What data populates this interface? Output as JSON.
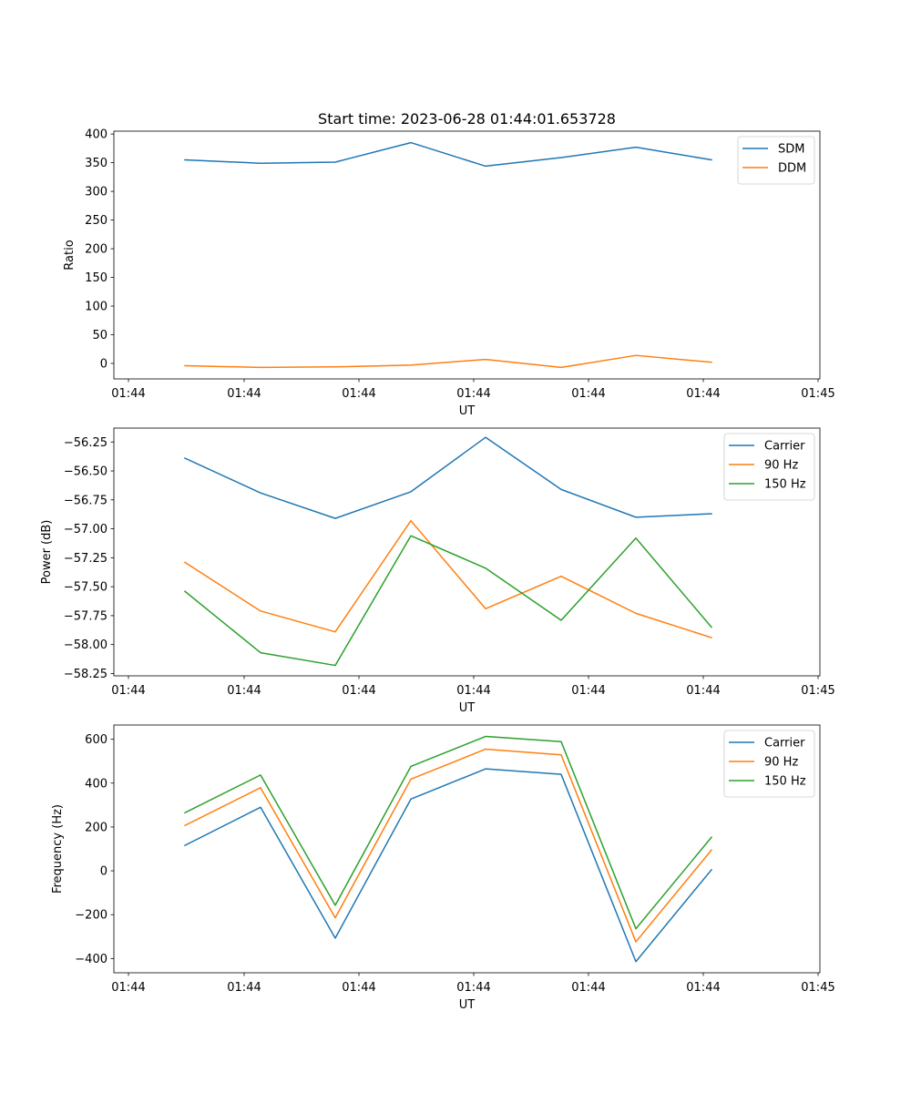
{
  "figure": {
    "title": "Start time: 2023-06-28 01:44:01.653728"
  },
  "colors": {
    "blue": "#1f77b4",
    "orange": "#ff7f0e",
    "green": "#2ca02c"
  },
  "chart_data": [
    {
      "type": "line",
      "title": "Start time: 2023-06-28 01:44:01.653728",
      "xlabel": "UT",
      "ylabel": "Ratio",
      "xtick_labels": [
        "01:44",
        "01:44",
        "01:44",
        "01:44",
        "01:44",
        "01:44",
        "01:45"
      ],
      "ylim": [
        -27,
        405
      ],
      "yticks": [
        0,
        50,
        100,
        150,
        200,
        250,
        300,
        350,
        400
      ],
      "ytick_labels": [
        "0",
        "50",
        "100",
        "150",
        "200",
        "250",
        "300",
        "350",
        "400"
      ],
      "legend": "top-right",
      "grid": false,
      "series": [
        {
          "name": "SDM",
          "color": "blue",
          "values": [
            355,
            349,
            351,
            385,
            344,
            359,
            377,
            355
          ]
        },
        {
          "name": "DDM",
          "color": "orange",
          "values": [
            -4,
            -7,
            -6,
            -3,
            7,
            -7,
            14,
            2
          ]
        }
      ]
    },
    {
      "type": "line",
      "xlabel": "UT",
      "ylabel": "Power (dB)",
      "xtick_labels": [
        "01:44",
        "01:44",
        "01:44",
        "01:44",
        "01:44",
        "01:44",
        "01:45"
      ],
      "ylim": [
        -58.27,
        -56.13
      ],
      "yticks": [
        -58.25,
        -58.0,
        -57.75,
        -57.5,
        -57.25,
        -57.0,
        -56.75,
        -56.5,
        -56.25
      ],
      "ytick_labels": [
        "−58.25",
        "−58.00",
        "−57.75",
        "−57.50",
        "−57.25",
        "−57.00",
        "−56.75",
        "−56.50",
        "−56.25"
      ],
      "legend": "top-right",
      "grid": false,
      "series": [
        {
          "name": "Carrier",
          "color": "blue",
          "values": [
            -56.39,
            -56.69,
            -56.91,
            -56.68,
            -56.21,
            -56.66,
            -56.9,
            -56.87
          ]
        },
        {
          "name": "90 Hz",
          "color": "orange",
          "values": [
            -57.29,
            -57.71,
            -57.89,
            -56.93,
            -57.69,
            -57.41,
            -57.73,
            -57.94
          ]
        },
        {
          "name": "150 Hz",
          "color": "green",
          "values": [
            -57.54,
            -58.07,
            -58.18,
            -57.06,
            -57.34,
            -57.79,
            -57.08,
            -57.85
          ]
        }
      ]
    },
    {
      "type": "line",
      "xlabel": "UT",
      "ylabel": "Frequency (Hz)",
      "xtick_labels": [
        "01:44",
        "01:44",
        "01:44",
        "01:44",
        "01:44",
        "01:44",
        "01:45"
      ],
      "ylim": [
        -465,
        665
      ],
      "yticks": [
        -400,
        -200,
        0,
        200,
        400,
        600
      ],
      "ytick_labels": [
        "−400",
        "−200",
        "0",
        "200",
        "400",
        "600"
      ],
      "legend": "top-right",
      "grid": false,
      "series": [
        {
          "name": "Carrier",
          "color": "blue",
          "values": [
            116,
            290,
            -307,
            327,
            465,
            440,
            -414,
            5
          ]
        },
        {
          "name": "90 Hz",
          "color": "orange",
          "values": [
            207,
            379,
            -214,
            418,
            555,
            529,
            -324,
            95
          ]
        },
        {
          "name": "150 Hz",
          "color": "green",
          "values": [
            265,
            437,
            -157,
            476,
            613,
            589,
            -264,
            153
          ]
        }
      ]
    }
  ]
}
